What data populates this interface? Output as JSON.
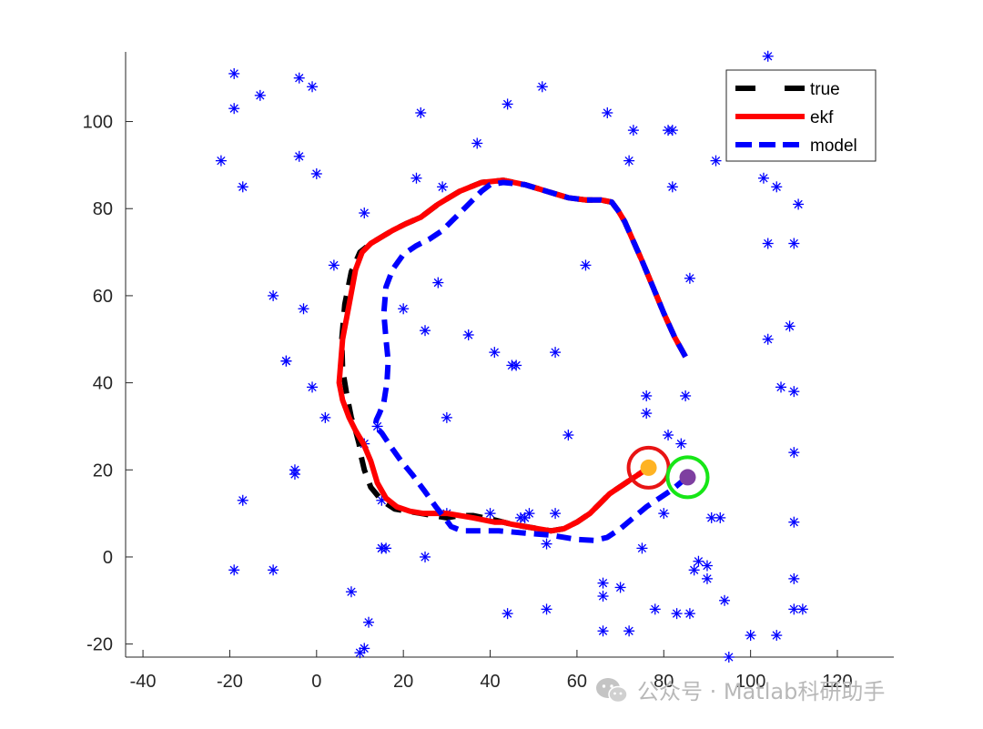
{
  "chart_data": {
    "type": "line",
    "title": "",
    "xlabel": "",
    "ylabel": "",
    "xlim": [
      -44,
      133
    ],
    "ylim": [
      -23,
      116
    ],
    "xticks": [
      -40,
      -20,
      0,
      20,
      40,
      60,
      80,
      100,
      120
    ],
    "yticks": [
      -20,
      0,
      20,
      40,
      60,
      80,
      100
    ],
    "grid": false,
    "legend_position": "top-right",
    "series": [
      {
        "name": "true",
        "color": "#000000",
        "style": "dashed",
        "x": [
          85.0,
          82.5,
          80.0,
          77.5,
          75.0,
          73.0,
          71.0,
          69.5,
          68.0,
          65.5,
          62.0,
          58.0,
          53.0,
          48.0,
          43.0,
          38.0,
          33.0,
          28.0,
          24.0,
          20.5,
          17.5,
          15.0,
          12.5,
          10.0,
          8.0,
          6.5,
          5.8,
          6.0,
          7.0,
          8.0,
          9.0,
          9.8,
          10.3,
          11.0,
          12.5,
          15.0,
          18.0,
          21.0,
          24.0,
          27.0,
          30.0,
          33.0,
          36.0,
          38.5,
          41.0,
          43.0,
          45.0,
          48.0,
          51.0,
          54.0,
          57.0,
          60.0,
          63.0,
          65.5,
          67.5,
          69.0,
          70.5,
          72.0,
          73.5,
          75.0,
          76.0
        ],
        "y": [
          46.0,
          50.5,
          56.0,
          62.0,
          68.0,
          72.5,
          77.0,
          79.5,
          81.5,
          82.0,
          82.0,
          82.5,
          84.0,
          85.5,
          86.5,
          86.0,
          84.0,
          81.0,
          78.0,
          76.5,
          75.0,
          73.5,
          72.0,
          70.0,
          65.5,
          58.0,
          50.0,
          43.0,
          37.0,
          32.0,
          29.0,
          26.0,
          23.0,
          20.0,
          16.0,
          13.0,
          11.0,
          10.5,
          10.0,
          9.5,
          9.0,
          9.5,
          9.5,
          9.0,
          8.5,
          8.0,
          7.5,
          7.0,
          6.5,
          6.0,
          6.5,
          8.0,
          10.0,
          12.5,
          14.5,
          15.5,
          16.5,
          17.5,
          18.5,
          19.5,
          20.5
        ]
      },
      {
        "name": "ekf",
        "color": "#ff0000",
        "style": "solid",
        "x": [
          85.0,
          82.5,
          80.0,
          77.5,
          75.0,
          73.0,
          71.0,
          69.5,
          68.0,
          65.5,
          62.0,
          58.0,
          53.0,
          48.0,
          43.0,
          38.0,
          33.0,
          28.0,
          24.0,
          20.5,
          17.5,
          15.0,
          12.5,
          10.5,
          9.0,
          7.5,
          6.0,
          5.2,
          6.0,
          7.5,
          9.0,
          10.8,
          12.5,
          14.0,
          16.0,
          18.5,
          21.5,
          24.5,
          27.5,
          30.0,
          33.0,
          36.0,
          38.5,
          41.0,
          43.0,
          45.0,
          48.0,
          51.0,
          54.0,
          57.0,
          60.0,
          63.0,
          65.5,
          67.5,
          69.0,
          70.5,
          72.0,
          73.5,
          75.0,
          76.0
        ],
        "y": [
          46.0,
          50.5,
          56.0,
          62.0,
          68.0,
          72.5,
          77.0,
          79.5,
          81.5,
          82.0,
          82.0,
          82.5,
          84.0,
          85.5,
          86.5,
          86.0,
          84.0,
          81.0,
          78.0,
          76.5,
          75.0,
          73.5,
          72.0,
          70.0,
          66.0,
          58.0,
          50.0,
          40.0,
          36.0,
          32.0,
          29.0,
          26.0,
          22.0,
          17.0,
          13.5,
          11.5,
          10.5,
          10.0,
          10.0,
          10.0,
          9.5,
          9.0,
          8.5,
          8.0,
          8.0,
          7.5,
          7.0,
          6.5,
          6.0,
          6.5,
          8.0,
          10.0,
          12.5,
          14.5,
          15.5,
          16.5,
          17.5,
          18.5,
          19.5,
          20.5
        ]
      },
      {
        "name": "model",
        "color": "#0000ff",
        "style": "dashed",
        "x": [
          85.0,
          82.5,
          80.0,
          77.5,
          75.0,
          73.0,
          71.0,
          69.5,
          68.0,
          65.5,
          62.0,
          58.0,
          53.0,
          48.0,
          43.0,
          40.0,
          38.0,
          36.0,
          33.0,
          29.0,
          26.0,
          23.0,
          20.0,
          17.5,
          16.0,
          15.5,
          16.0,
          16.5,
          16.2,
          15.5,
          14.5,
          13.8,
          13.5,
          15.0,
          17.0,
          19.5,
          22.0,
          25.0,
          27.5,
          29.5,
          31.0,
          33.5,
          37.0,
          42.0,
          48.0,
          54.0,
          60.0,
          64.0,
          67.0,
          70.0,
          73.0,
          76.0,
          79.0,
          82.0,
          85.0
        ],
        "y": [
          46.0,
          50.5,
          56.0,
          62.0,
          68.0,
          72.5,
          77.0,
          79.5,
          81.5,
          82.0,
          82.0,
          82.5,
          84.0,
          85.5,
          86.0,
          85.5,
          84.0,
          82.0,
          79.0,
          75.0,
          73.0,
          71.5,
          69.5,
          66.0,
          62.0,
          56.0,
          50.0,
          45.0,
          40.0,
          35.5,
          33.0,
          31.5,
          30.0,
          28.5,
          25.5,
          22.0,
          19.0,
          15.0,
          11.5,
          9.0,
          7.0,
          6.0,
          6.0,
          6.0,
          5.5,
          5.0,
          4.0,
          3.8,
          4.5,
          6.5,
          9.0,
          11.5,
          13.5,
          15.5,
          18.0
        ]
      }
    ],
    "landmarks": {
      "color": "#0000ff",
      "marker": "asterisk",
      "x": [
        104,
        -19,
        -4,
        -13,
        -1,
        -19,
        -22,
        -17,
        -4,
        0,
        24,
        44,
        52,
        67,
        73,
        81,
        72,
        92,
        37,
        29,
        23,
        11,
        4,
        -10,
        -3,
        -7,
        -1,
        2,
        11,
        14,
        15,
        15,
        16,
        20,
        25,
        28,
        30,
        35,
        41,
        45,
        46,
        49,
        53,
        55,
        58,
        62,
        76,
        76,
        75,
        81,
        82,
        82,
        84,
        86,
        90,
        93,
        95,
        103,
        104,
        104,
        106,
        109,
        110,
        110,
        110,
        110,
        110,
        110,
        111,
        112,
        -17,
        -19,
        -10,
        -5,
        -5,
        -7,
        11,
        12,
        8,
        10,
        15,
        25,
        30,
        40,
        44,
        47,
        48,
        53,
        55,
        66,
        66,
        66,
        70,
        72,
        78,
        80,
        83,
        85,
        86,
        87,
        88,
        90,
        91,
        94,
        100,
        106,
        107
      ],
      "y": [
        115,
        111,
        110,
        106,
        108,
        103,
        91,
        85,
        92,
        88,
        102,
        104,
        108,
        102,
        98,
        98,
        91,
        91,
        95,
        85,
        87,
        79,
        67,
        60,
        57,
        45,
        39,
        32,
        26,
        30,
        13,
        2,
        2,
        57,
        52,
        63,
        32,
        51,
        47,
        44,
        44,
        10,
        3,
        47,
        28,
        67,
        37,
        33,
        2,
        28,
        85,
        98,
        26,
        64,
        -2,
        9,
        -23,
        87,
        72,
        50,
        85,
        53,
        72,
        38,
        24,
        8,
        -5,
        -12,
        81,
        -12,
        13,
        -3,
        -3,
        19,
        20,
        45,
        -21,
        -15,
        -8,
        -22,
        2,
        0,
        10,
        10,
        -13,
        9,
        9,
        -12,
        10,
        -6,
        -9,
        -17,
        -7,
        -17,
        -12,
        10,
        -13,
        37,
        -13,
        -3,
        -1,
        -5,
        9,
        -10,
        -18,
        -18,
        39
      ]
    },
    "markers": [
      {
        "label": "ekf-estimate",
        "x": 76.5,
        "y": 20.5,
        "dot_color": "#ffb323",
        "ring_color": "#e81414"
      },
      {
        "label": "true-position",
        "x": 85.5,
        "y": 18.3,
        "dot_color": "#7e3fa0",
        "ring_color": "#17e617"
      }
    ]
  },
  "watermark": {
    "text": "公众号 · Matlab科研助手",
    "icon": "wechat-icon",
    "color": "#b8b8b8"
  }
}
